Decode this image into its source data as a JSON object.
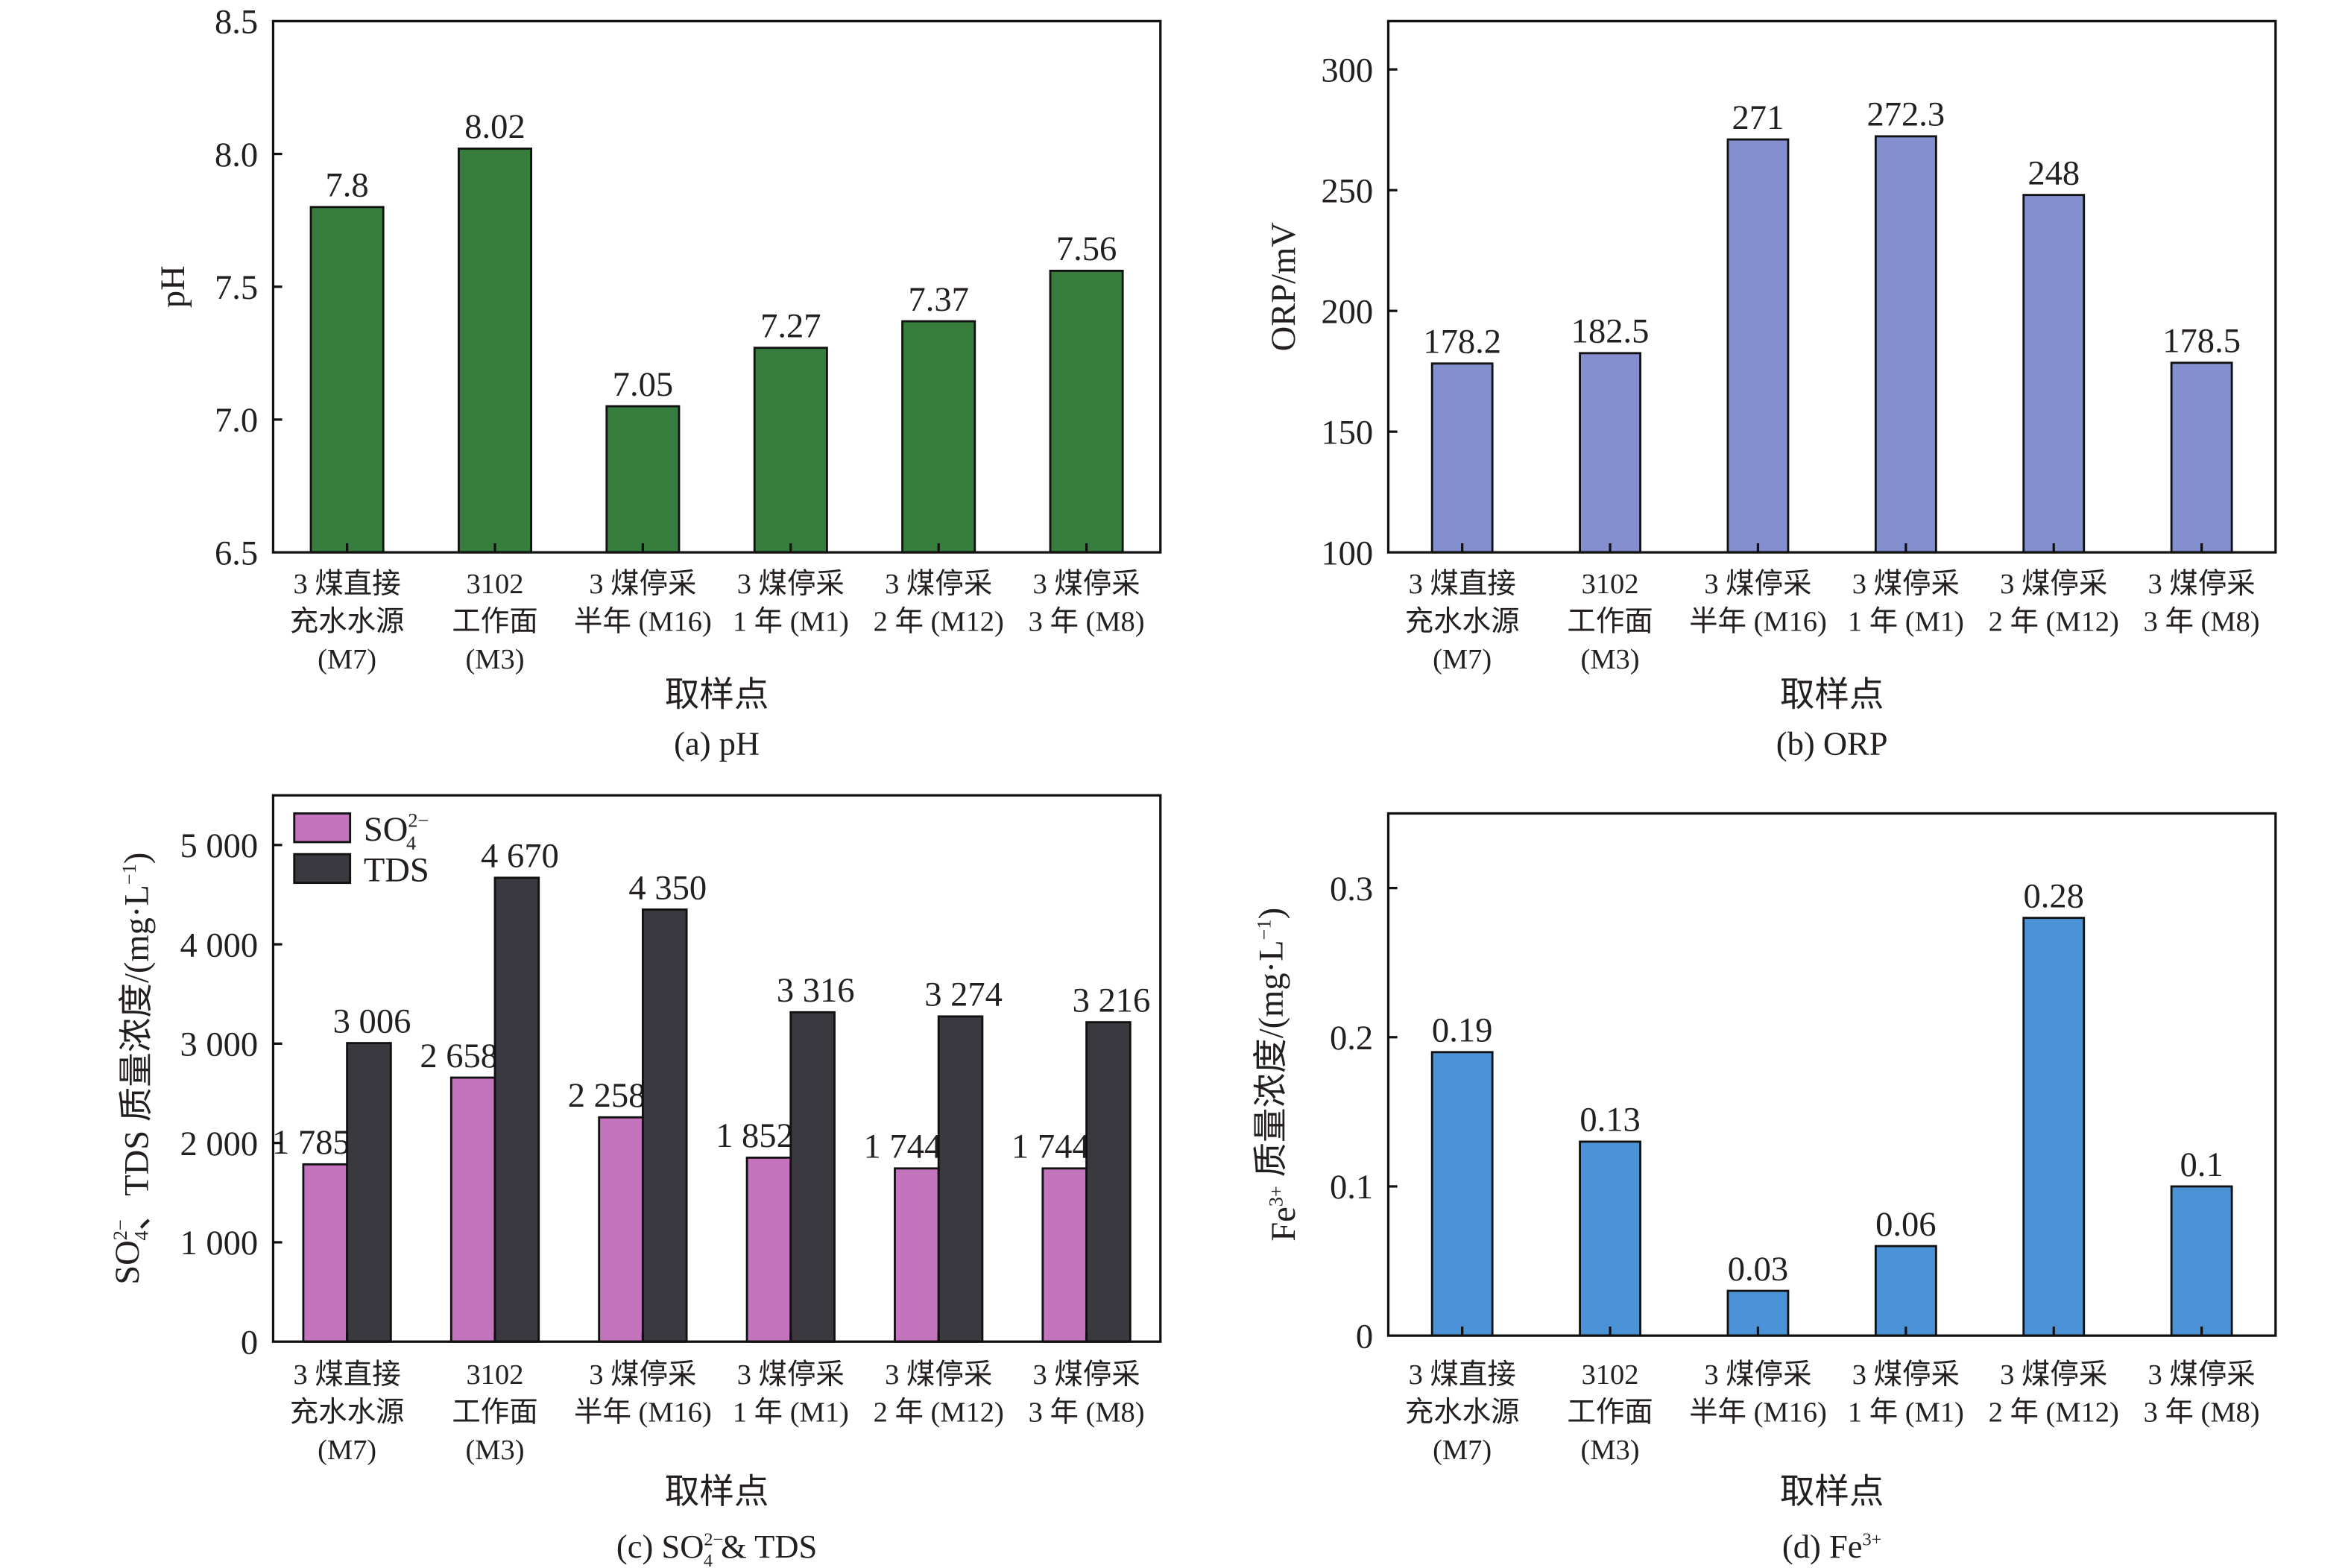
{
  "chart_data": [
    {
      "id": "a",
      "type": "bar",
      "title": "(a) pH",
      "xlabel": "取样点",
      "ylabel": "pH",
      "ylim": [
        6.5,
        8.5
      ],
      "yticks": [
        6.5,
        7.0,
        7.5,
        8.0,
        8.5
      ],
      "ytick_labels": [
        "6.5",
        "7.0",
        "7.5",
        "8.0",
        "8.5"
      ],
      "grid": false,
      "categories": [
        [
          "3 煤直接",
          "充水水源",
          "(M7)"
        ],
        [
          "3102",
          "工作面",
          "(M3)"
        ],
        [
          "3 煤停采",
          "半年 (M16)"
        ],
        [
          "3 煤停采",
          "1 年 (M1)"
        ],
        [
          "3 煤停采",
          "2 年 (M12)"
        ],
        [
          "3 煤停采",
          "3 年 (M8)"
        ]
      ],
      "series": [
        {
          "name": "pH",
          "color": "#377e3e",
          "values": [
            7.8,
            8.02,
            7.05,
            7.27,
            7.37,
            7.56
          ],
          "labels": [
            "7.8",
            "8.02",
            "7.05",
            "7.27",
            "7.37",
            "7.56"
          ]
        }
      ]
    },
    {
      "id": "b",
      "type": "bar",
      "title": "(b) ORP",
      "xlabel": "取样点",
      "ylabel": "ORP/mV",
      "ylim": [
        100,
        320
      ],
      "yticks": [
        100,
        150,
        200,
        250,
        300
      ],
      "ytick_labels": [
        "100",
        "150",
        "200",
        "250",
        "300"
      ],
      "grid": false,
      "categories": [
        [
          "3 煤直接",
          "充水水源",
          "(M7)"
        ],
        [
          "3102",
          "工作面",
          "(M3)"
        ],
        [
          "3 煤停采",
          "半年 (M16)"
        ],
        [
          "3 煤停采",
          "1 年 (M1)"
        ],
        [
          "3 煤停采",
          "2 年 (M12)"
        ],
        [
          "3 煤停采",
          "3 年 (M8)"
        ]
      ],
      "series": [
        {
          "name": "ORP",
          "color": "#848fcf",
          "values": [
            178.2,
            182.5,
            271,
            272.3,
            248,
            178.5
          ],
          "labels": [
            "178.2",
            "182.5",
            "271",
            "272.3",
            "248",
            "178.5"
          ]
        }
      ]
    },
    {
      "id": "c",
      "type": "bar",
      "title": "(c) SO42− & TDS",
      "title_parts": {
        "prefix": "(c) SO",
        "sub": "4",
        "sup": "2−",
        "suffix": " & TDS"
      },
      "xlabel": "取样点",
      "ylabel": "SO42−、TDS 质量浓度/(mg·L−1)",
      "ylabel_parts": {
        "a": "SO",
        "sub": "4",
        "sup": "2−",
        "b": "、TDS 质量浓度/(mg·L",
        "sup2": "−1",
        "c": ")"
      },
      "ylim": [
        0,
        5500
      ],
      "yticks": [
        0,
        1000,
        2000,
        3000,
        4000,
        5000
      ],
      "ytick_labels": [
        "0",
        "1 000",
        "2 000",
        "3 000",
        "4 000",
        "5 000"
      ],
      "grid": false,
      "legend": {
        "position": "top-left",
        "entries": [
          {
            "label": "SO",
            "sub": "4",
            "sup": "2−",
            "color": "#c474bc"
          },
          {
            "label": "TDS",
            "sub": "",
            "sup": "",
            "color": "#3a393f"
          }
        ]
      },
      "categories": [
        [
          "3 煤直接",
          "充水水源",
          "(M7)"
        ],
        [
          "3102",
          "工作面",
          "(M3)"
        ],
        [
          "3 煤停采",
          "半年 (M16)"
        ],
        [
          "3 煤停采",
          "1 年 (M1)"
        ],
        [
          "3 煤停采",
          "2 年 (M12)"
        ],
        [
          "3 煤停采",
          "3 年 (M8)"
        ]
      ],
      "series": [
        {
          "name": "SO42−",
          "color": "#c474bc",
          "values": [
            1785,
            2658,
            2258,
            1852,
            1744,
            1744
          ],
          "labels": [
            "1 785",
            "2 658",
            "2 258",
            "1 852",
            "1 744",
            "1 744"
          ]
        },
        {
          "name": "TDS",
          "color": "#3a393f",
          "values": [
            3006,
            4670,
            4350,
            3316,
            3274,
            3216
          ],
          "labels": [
            "3 006",
            "4 670",
            "4 350",
            "3 316",
            "3 274",
            "3 216"
          ]
        }
      ]
    },
    {
      "id": "d",
      "type": "bar",
      "title": "(d) Fe3+",
      "title_parts": {
        "prefix": "(d) Fe",
        "sup": "3+"
      },
      "xlabel": "取样点",
      "ylabel": "Fe3+ 质量浓度/(mg·L−1)",
      "ylabel_parts": {
        "a": "Fe",
        "sup": "3+",
        "b": " 质量浓度/(mg·L",
        "sup2": "−1",
        "c": ")"
      },
      "ylim": [
        0,
        0.35
      ],
      "yticks": [
        0,
        0.1,
        0.2,
        0.3
      ],
      "ytick_labels": [
        "0",
        "0.1",
        "0.2",
        "0.3"
      ],
      "grid": false,
      "categories": [
        [
          "3 煤直接",
          "充水水源",
          "(M7)"
        ],
        [
          "3102",
          "工作面",
          "(M3)"
        ],
        [
          "3 煤停采",
          "半年 (M16)"
        ],
        [
          "3 煤停采",
          "1 年 (M1)"
        ],
        [
          "3 煤停采",
          "2 年 (M12)"
        ],
        [
          "3 煤停采",
          "3 年 (M8)"
        ]
      ],
      "series": [
        {
          "name": "Fe3+",
          "color": "#4b93d6",
          "values": [
            0.19,
            0.13,
            0.03,
            0.06,
            0.28,
            0.1
          ],
          "labels": [
            "0.19",
            "0.13",
            "0.03",
            "0.06",
            "0.28",
            "0.1"
          ]
        }
      ]
    }
  ]
}
